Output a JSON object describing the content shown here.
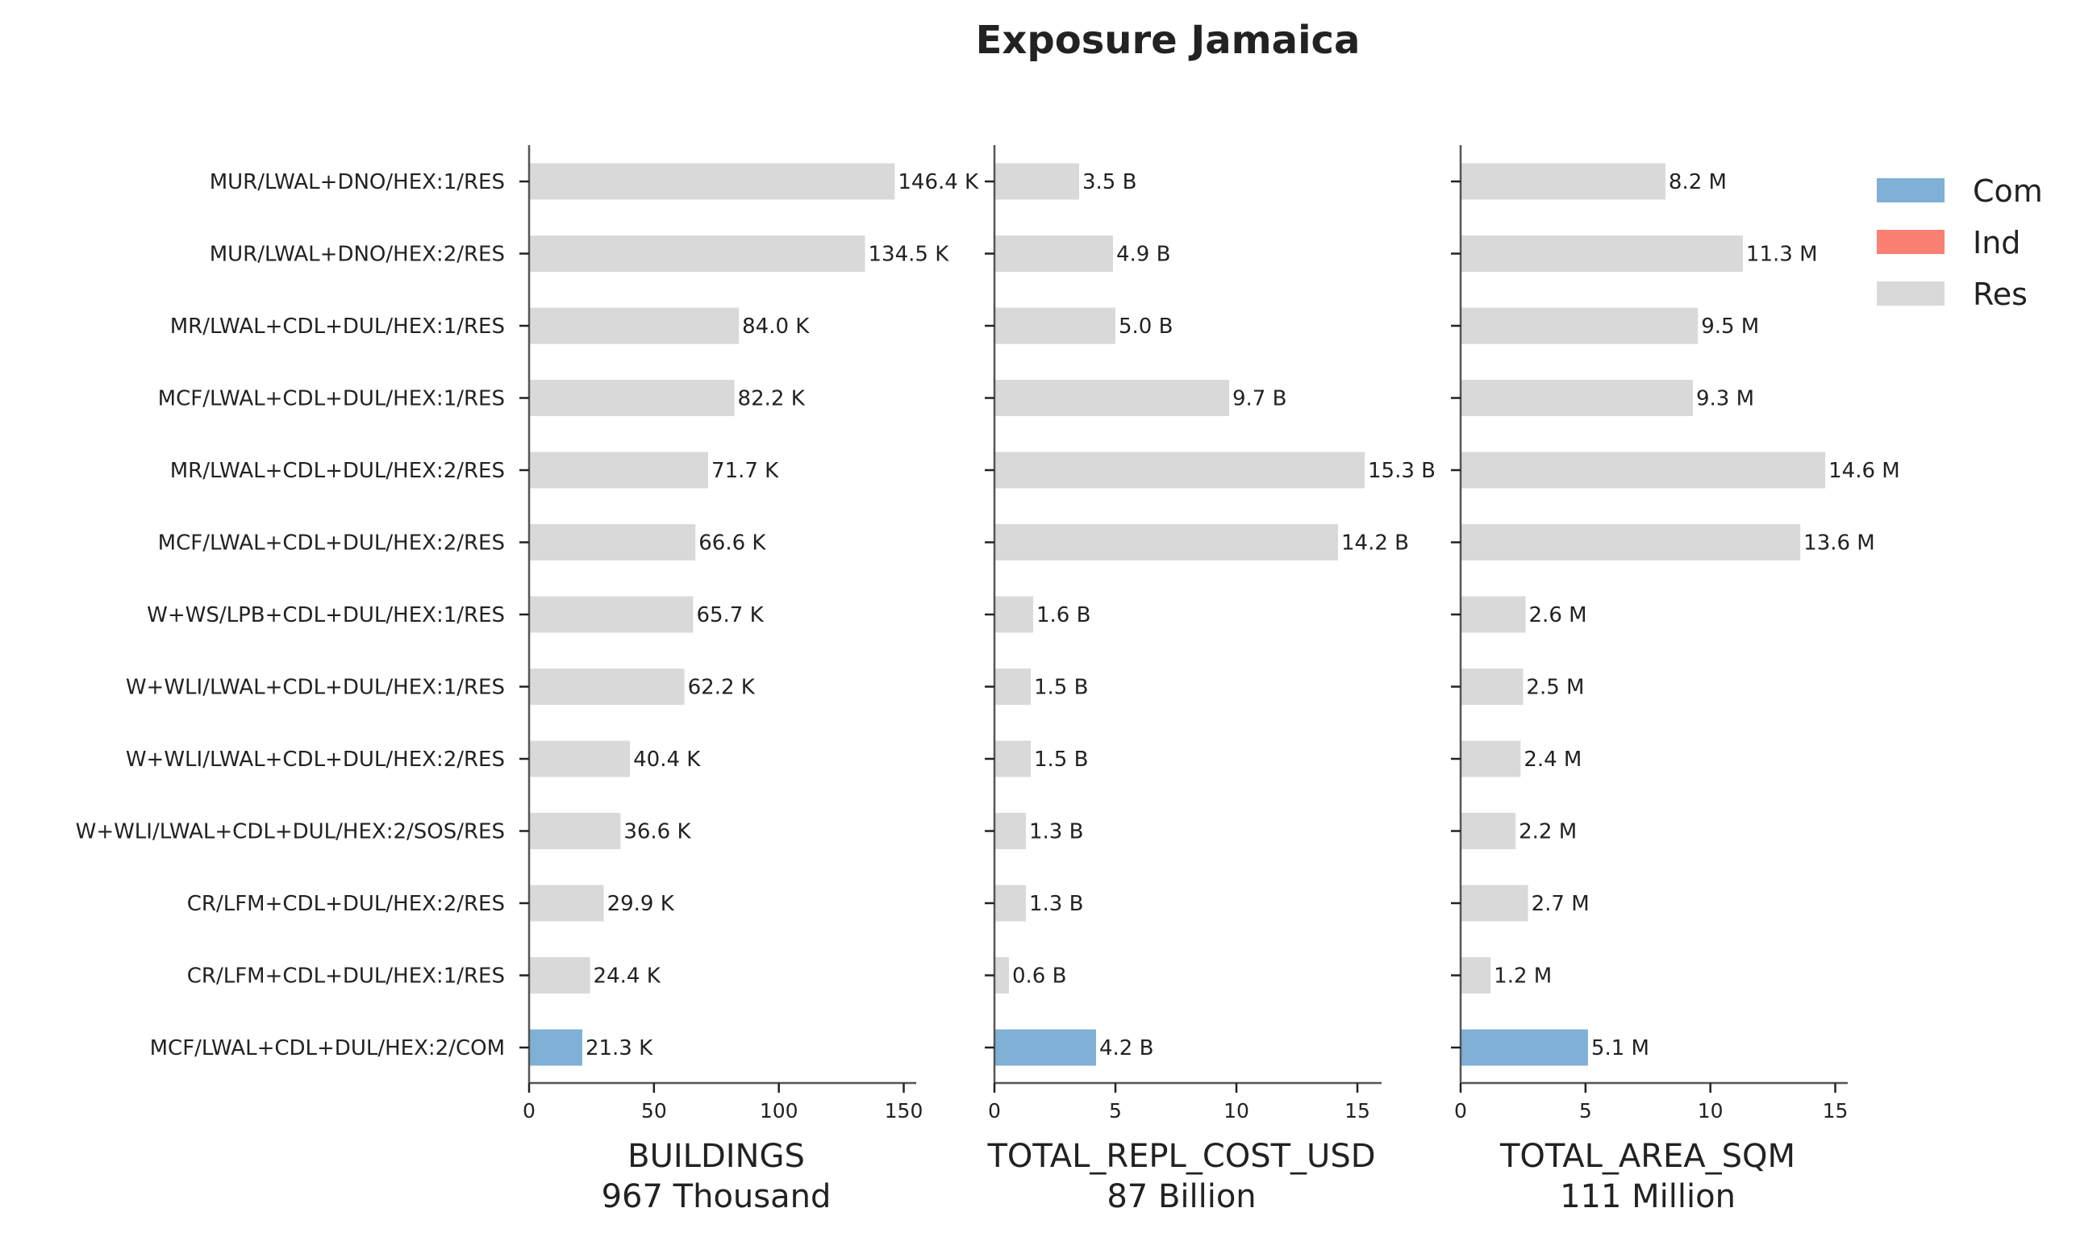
{
  "title": "Exposure Jamaica",
  "chart_data": {
    "type": "bar",
    "orientation": "horizontal",
    "title": "Exposure Jamaica",
    "categories": [
      "MUR/LWAL+DNO/HEX:1/RES",
      "MUR/LWAL+DNO/HEX:2/RES",
      "MR/LWAL+CDL+DUL/HEX:1/RES",
      "MCF/LWAL+CDL+DUL/HEX:1/RES",
      "MR/LWAL+CDL+DUL/HEX:2/RES",
      "MCF/LWAL+CDL+DUL/HEX:2/RES",
      "W+WS/LPB+CDL+DUL/HEX:1/RES",
      "W+WLI/LWAL+CDL+DUL/HEX:1/RES",
      "W+WLI/LWAL+CDL+DUL/HEX:2/RES",
      "W+WLI/LWAL+CDL+DUL/HEX:2/SOS/RES",
      "CR/LFM+CDL+DUL/HEX:2/RES",
      "CR/LFM+CDL+DUL/HEX:1/RES",
      "MCF/LWAL+CDL+DUL/HEX:2/COM"
    ],
    "occupancy": [
      "Res",
      "Res",
      "Res",
      "Res",
      "Res",
      "Res",
      "Res",
      "Res",
      "Res",
      "Res",
      "Res",
      "Res",
      "Com"
    ],
    "legend": {
      "placement": "top-right",
      "entries": [
        {
          "name": "Com",
          "color": "#7fb0d6"
        },
        {
          "name": "Ind",
          "color": "#fa8072"
        },
        {
          "name": "Res",
          "color": "#d9d9d9"
        }
      ]
    },
    "panels": [
      {
        "xlabel": "BUILDINGS",
        "total": "967 Thousand",
        "xlim": [
          0,
          155
        ],
        "xticks": [
          0,
          50,
          100,
          150
        ],
        "values": [
          146.4,
          134.5,
          84.0,
          82.2,
          71.7,
          66.6,
          65.7,
          62.2,
          40.4,
          36.6,
          29.9,
          24.4,
          21.3
        ],
        "labels": [
          "146.4 K",
          "134.5 K",
          "84.0 K",
          "82.2 K",
          "71.7 K",
          "66.6 K",
          "65.7 K",
          "62.2 K",
          "40.4 K",
          "36.6 K",
          "29.9 K",
          "24.4 K",
          "21.3 K"
        ]
      },
      {
        "xlabel": "TOTAL_REPL_COST_USD",
        "total": "87 Billion",
        "xlim": [
          0,
          16
        ],
        "xticks": [
          0,
          5,
          10,
          15
        ],
        "values": [
          3.5,
          4.9,
          5.0,
          9.7,
          15.3,
          14.2,
          1.6,
          1.5,
          1.5,
          1.3,
          1.3,
          0.6,
          4.2
        ],
        "labels": [
          "3.5 B",
          "4.9 B",
          "5.0 B",
          "9.7 B",
          "15.3 B",
          "14.2 B",
          "1.6 B",
          "1.5 B",
          "1.5 B",
          "1.3 B",
          "1.3 B",
          "0.6 B",
          "4.2 B"
        ]
      },
      {
        "xlabel": "TOTAL_AREA_SQM",
        "total": "111 Million",
        "xlim": [
          0,
          15.5
        ],
        "xticks": [
          0,
          5,
          10,
          15
        ],
        "values": [
          8.2,
          11.3,
          9.5,
          9.3,
          14.6,
          13.6,
          2.6,
          2.5,
          2.4,
          2.2,
          2.7,
          1.2,
          5.1
        ],
        "labels": [
          "8.2 M",
          "11.3 M",
          "9.5 M",
          "9.3 M",
          "14.6 M",
          "13.6 M",
          "2.6 M",
          "2.5 M",
          "2.4 M",
          "2.2 M",
          "2.7 M",
          "1.2 M",
          "5.1 M"
        ]
      }
    ]
  }
}
